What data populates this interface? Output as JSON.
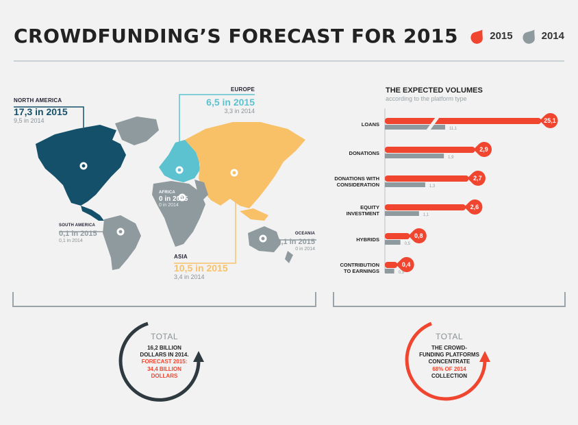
{
  "header": {
    "title": "CROWDFUNDING’S FORECAST FOR 2015",
    "legend": [
      {
        "label": "2015",
        "color": "#f0452f"
      },
      {
        "label": "2014",
        "color": "#8f9a9f"
      }
    ]
  },
  "map": {
    "regions": [
      {
        "key": "north_america",
        "name": "NORTH AMERICA",
        "v2015": "17,3 in 2015",
        "v2014": "9,5 in 2014",
        "color": "#15506a"
      },
      {
        "key": "europe",
        "name": "EUROPE",
        "v2015": "6,5 in 2015",
        "v2014": "3,3 in 2014",
        "color": "#5cc2cf"
      },
      {
        "key": "africa",
        "name": "AFRICA",
        "v2015": "0 in 2015",
        "v2014": "0 in 2014",
        "color": "#8f9a9f"
      },
      {
        "key": "south_america",
        "name": "SOUTH AMERICA",
        "v2015": "0,1 in 2015",
        "v2014": "0,1 in 2014",
        "color": "#8f9a9f"
      },
      {
        "key": "oceania",
        "name": "OCEANIA",
        "v2015": "0,1 in 2015",
        "v2014": "0 in 2014",
        "color": "#8f9a9f"
      },
      {
        "key": "asia",
        "name": "ASIA",
        "v2015": "10,5 in 2015",
        "v2014": "3,4 in 2014",
        "color": "#f8c168"
      }
    ]
  },
  "chart_data": {
    "type": "bar",
    "title": "THE EXPECTED VOLUMES",
    "subtitle": "according to the platform type",
    "categories": [
      "LOANS",
      "DONATIONS",
      "DONATIONS WITH CONSIDERATION",
      "EQUITY INVESTMENT",
      "HYBRIDS",
      "CONTRIBUTION TO EARNINGS"
    ],
    "category_lines": [
      [
        "LOANS"
      ],
      [
        "DONATIONS"
      ],
      [
        "DONATIONS WITH",
        "CONSIDERATION"
      ],
      [
        "EQUITY",
        "INVESTMENT"
      ],
      [
        "HYBRIDS"
      ],
      [
        "CONTRIBUTION",
        "TO EARNINGS"
      ]
    ],
    "series": [
      {
        "name": "2015",
        "values": [
          25.1,
          2.9,
          2.7,
          2.6,
          0.8,
          0.4
        ],
        "labels": [
          "25,1",
          "2,9",
          "2,7",
          "2,6",
          "0,8",
          "0,4"
        ],
        "color": "#f0452f"
      },
      {
        "name": "2014",
        "values": [
          11.1,
          1.9,
          1.3,
          1.1,
          0.5,
          0.3
        ],
        "labels": [
          "11,1",
          "1,9",
          "1,3",
          "1,1",
          "0,5",
          "0,3"
        ],
        "color": "#8f9a9f"
      }
    ],
    "axis_break": {
      "category": "LOANS"
    }
  },
  "totals": {
    "left": {
      "heading": "TOTAL",
      "line1": "16,2 BILLION",
      "line2": "DOLLARS IN 2014.",
      "line3": "FORECAST 2015:",
      "line4": "34,4 BILLION",
      "line5": "DOLLARS",
      "color": "#2f3a40"
    },
    "right": {
      "heading": "TOTAL",
      "line1": "THE CROWD-",
      "line2": "FUNDING PLATFORMS",
      "line3": "CONCENTRATE",
      "line4": "68% OF 2014",
      "line5": "COLLECTION",
      "color": "#f0452f"
    }
  }
}
